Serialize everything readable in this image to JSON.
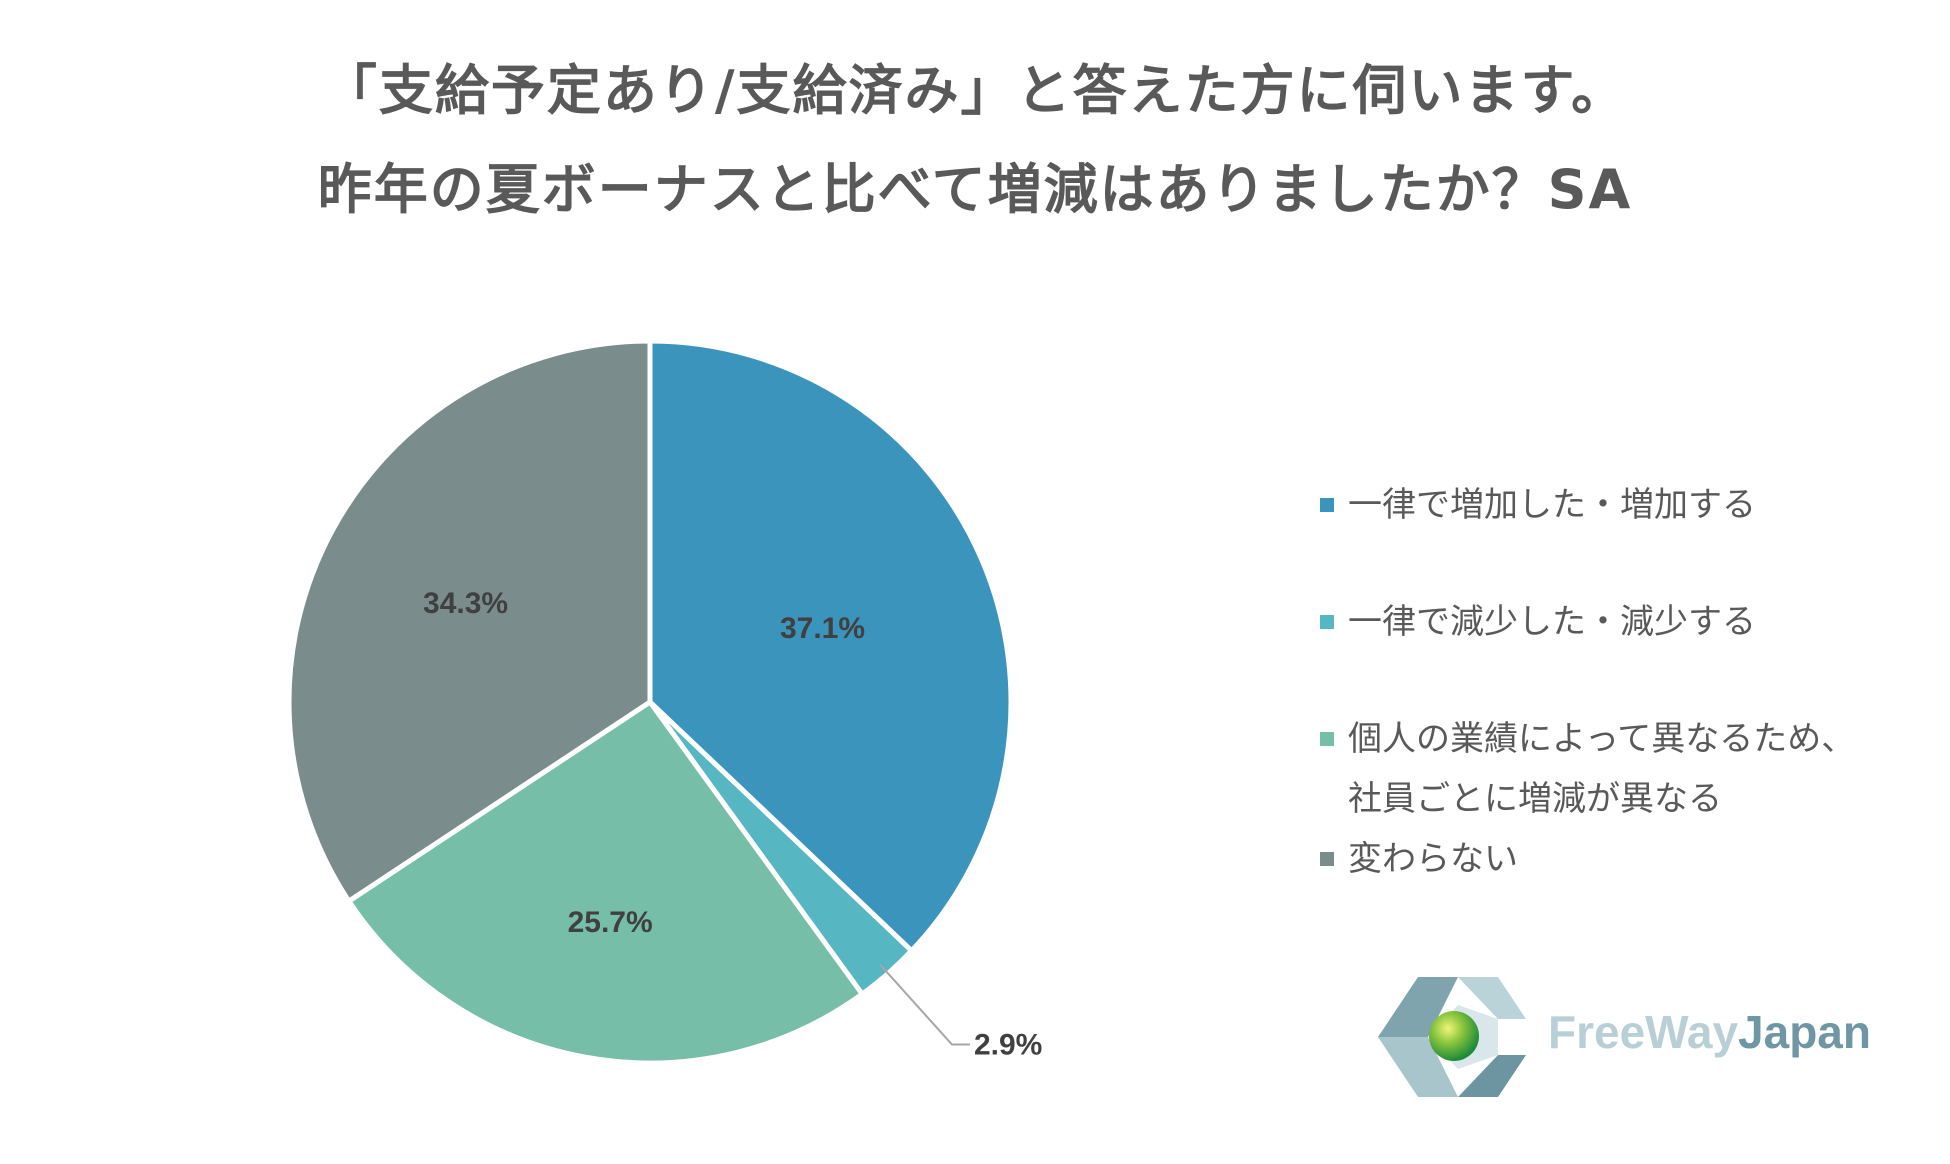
{
  "title": {
    "line1": "「支給予定あり/支給済み」と答えた方に伺います。",
    "line2": "昨年の夏ボーナスと比べて増減はありましたか？SA"
  },
  "chart_data": {
    "type": "pie",
    "start_angle_deg": 0,
    "direction": "clockwise",
    "categories": [
      "一律で増加した・増加する",
      "一律で減少した・減少する",
      "個人の業績によって異なるため、社員ごとに増減が異なる",
      "変わらない"
    ],
    "values": [
      37.1,
      2.9,
      25.7,
      34.3
    ],
    "labels": [
      "37.1%",
      "2.9%",
      "25.7%",
      "34.3%"
    ],
    "colors": [
      "#3a94bb",
      "#56b6c2",
      "#77bea8",
      "#7a8c8c"
    ],
    "legend_position": "right"
  },
  "legend": {
    "items": [
      {
        "label": "一律で増加した・増加する",
        "color": "#3a94bb"
      },
      {
        "label": "一律で減少した・減少する",
        "color": "#56b6c2"
      },
      {
        "label_line1": "個人の業績によって異なるため、",
        "label_line2": "社員ごとに増減が異なる",
        "color": "#77bea8"
      },
      {
        "label": "変わらない",
        "color": "#7a8c8c"
      }
    ]
  },
  "logo": {
    "text_part1": "FreeWay",
    "text_part2": "Japan"
  }
}
